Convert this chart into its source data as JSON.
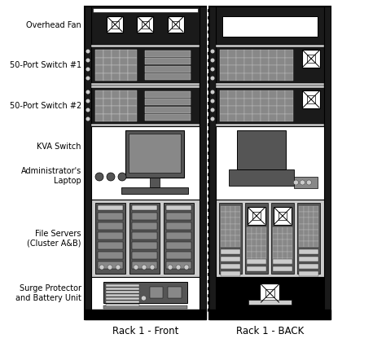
{
  "fig_width": 4.74,
  "fig_height": 4.37,
  "dpi": 100,
  "bg_color": "#ffffff",
  "BLACK": "#000000",
  "WHITE": "#ffffff",
  "LGRAY": "#cccccc",
  "MGRAY": "#888888",
  "DGRAY": "#555555",
  "VDARK": "#1a1a1a",
  "label_fontsize": 7.0,
  "caption_fontsize": 8.5,
  "labels": {
    "overhead_fan": "Overhead Fan",
    "switch1": "50-Port Switch #1",
    "switch2": "50-Port Switch #2",
    "kva": "KVA Switch",
    "laptop": "Administrator's\nLaptop",
    "fileservers": "File Servers\n(Cluster A&B)",
    "surge": "Surge Protector\nand Battery Unit",
    "front_caption": "Rack 1 - Front",
    "back_caption": "Rack 1 - BACK"
  }
}
